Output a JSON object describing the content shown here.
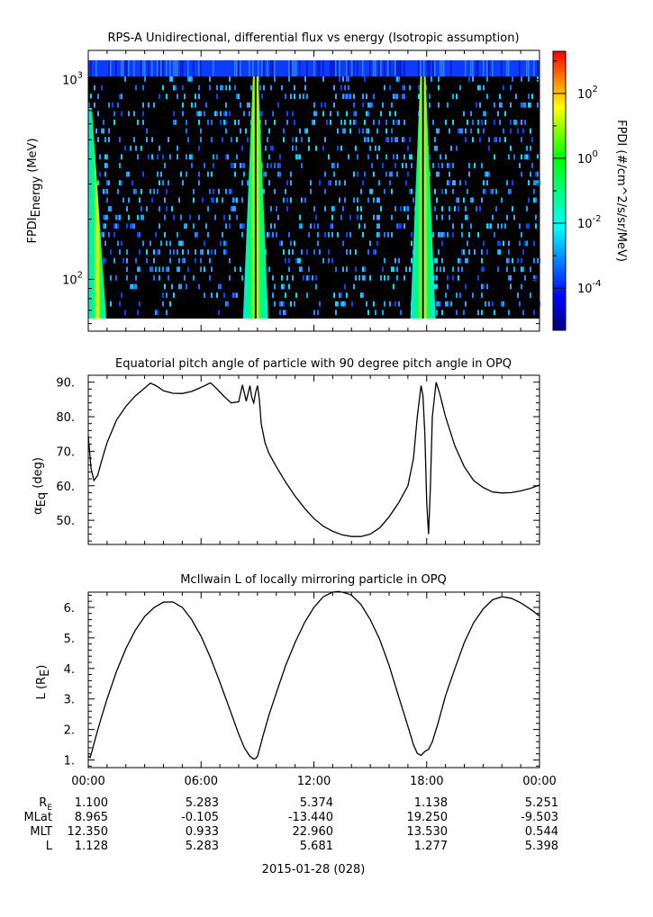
{
  "chart_data": [
    {
      "type": "heatmap",
      "title": "RPS-A Unidirectional, differential flux vs energy (Isotropic assumption)",
      "ylabel_main": "FPDI",
      "ylabel_sub": "Energy",
      "ylabel_unit": " (MeV)",
      "yscale": "log",
      "ylim": [
        55,
        1400
      ],
      "y_ticks": [
        {
          "base": "10",
          "exp": "3",
          "value": 1000
        },
        {
          "base": "10",
          "exp": "2",
          "value": 100
        }
      ],
      "colorbar": {
        "label": "FPDI (#/cm^2/s/sr/MeV)",
        "scale": "log",
        "range_log10": [
          -5.3,
          3.3
        ],
        "ticks": [
          {
            "base": "10",
            "exp": "2",
            "log": 2
          },
          {
            "base": "10",
            "exp": "0",
            "log": 0
          },
          {
            "base": "10",
            "exp": "-2",
            "log": -2
          },
          {
            "base": "10",
            "exp": "-4",
            "log": -4
          }
        ],
        "colors": [
          "#00007f",
          "#0000ff",
          "#00ffff",
          "#00ff00",
          "#ffff00",
          "#ff0000"
        ]
      },
      "features": [
        {
          "kind": "low-L flux band",
          "x_hours": 0.1,
          "peak": "yellow-green"
        },
        {
          "kind": "low-L flux band",
          "x_hours": 8.9,
          "peak": "yellow-green"
        },
        {
          "kind": "low-L flux band",
          "x_hours": 17.8,
          "peak": "yellow-green"
        }
      ]
    },
    {
      "type": "line",
      "title": "Equatorial pitch angle of particle with 90 degree pitch angle in OPQ",
      "ylabel_main": "α",
      "ylabel_sub": "Eq",
      "ylabel_unit": " (deg)",
      "ylim": [
        43,
        92
      ],
      "y_ticks": [
        "90.",
        "80.",
        "70.",
        "60.",
        "50."
      ],
      "x": [
        0.0,
        0.15,
        0.3,
        0.5,
        0.7,
        1.0,
        1.5,
        2.0,
        2.5,
        3.0,
        3.3,
        3.6,
        4.0,
        4.5,
        5.0,
        5.5,
        6.0,
        6.5,
        6.8,
        7.2,
        7.6,
        8.0,
        8.2,
        8.4,
        8.6,
        8.7,
        8.8,
        8.9,
        9.0,
        9.1,
        9.2,
        9.4,
        9.6,
        10.0,
        10.5,
        11.0,
        11.5,
        12.0,
        12.5,
        13.0,
        13.5,
        14.0,
        14.5,
        15.0,
        15.5,
        16.0,
        16.5,
        17.0,
        17.3,
        17.5,
        17.7,
        17.8,
        17.9,
        18.0,
        18.1,
        18.2,
        18.3,
        18.5,
        18.7,
        19.0,
        19.5,
        20.0,
        20.5,
        21.0,
        21.5,
        22.0,
        22.5,
        23.0,
        23.5,
        24.0
      ],
      "y": [
        74.5,
        65.0,
        61.5,
        63.0,
        67.0,
        72.5,
        79.0,
        83.0,
        86.0,
        88.3,
        89.7,
        89.0,
        87.5,
        86.8,
        86.7,
        87.3,
        88.5,
        89.8,
        88.3,
        86.0,
        84.0,
        84.3,
        89.2,
        84.5,
        89.0,
        85.5,
        84.0,
        87.0,
        89.0,
        85.0,
        78.0,
        72.5,
        69.5,
        65.5,
        61.0,
        57.0,
        53.5,
        50.5,
        48.3,
        46.8,
        45.8,
        45.3,
        45.3,
        46.0,
        47.8,
        51.0,
        55.0,
        60.0,
        68.0,
        80.0,
        89.0,
        86.0,
        75.0,
        55.0,
        46.0,
        60.0,
        80.0,
        90.0,
        86.5,
        80.0,
        71.5,
        65.5,
        61.5,
        59.5,
        58.2,
        57.9,
        58.0,
        58.5,
        59.2,
        60.2
      ]
    },
    {
      "type": "line",
      "title": "McIlwain L of locally mirroring particle in OPQ",
      "ylabel_main": "L (R",
      "ylabel_sub": "E",
      "ylabel_unit": ")",
      "ylim": [
        0.75,
        6.5
      ],
      "y_ticks": [
        "6.",
        "5.",
        "4.",
        "3.",
        "2.",
        "1."
      ],
      "x": [
        0.0,
        0.1,
        0.2,
        0.4,
        0.7,
        1.0,
        1.5,
        2.0,
        2.5,
        3.0,
        3.5,
        4.0,
        4.5,
        5.0,
        5.5,
        6.0,
        6.5,
        7.0,
        7.5,
        8.0,
        8.3,
        8.6,
        8.8,
        8.9,
        9.0,
        9.1,
        9.3,
        9.6,
        10.0,
        10.5,
        11.0,
        11.5,
        12.0,
        12.5,
        13.0,
        13.3,
        13.5,
        13.8,
        14.0,
        14.5,
        15.0,
        15.5,
        16.0,
        16.5,
        17.0,
        17.3,
        17.5,
        17.7,
        17.9,
        18.1,
        18.3,
        18.6,
        19.0,
        19.5,
        20.0,
        20.5,
        21.0,
        21.5,
        22.0,
        22.5,
        23.0,
        23.5,
        24.0
      ],
      "y": [
        1.13,
        1.08,
        1.3,
        1.75,
        2.4,
        3.0,
        3.9,
        4.65,
        5.25,
        5.7,
        6.0,
        6.17,
        6.18,
        6.0,
        5.6,
        5.05,
        4.35,
        3.55,
        2.7,
        1.85,
        1.4,
        1.12,
        1.03,
        1.05,
        1.12,
        1.35,
        1.8,
        2.45,
        3.2,
        4.1,
        4.85,
        5.5,
        6.0,
        6.35,
        6.5,
        6.52,
        6.5,
        6.45,
        6.4,
        6.1,
        5.6,
        4.95,
        4.1,
        3.1,
        2.1,
        1.5,
        1.22,
        1.15,
        1.28,
        1.35,
        1.6,
        2.2,
        3.1,
        4.0,
        4.85,
        5.5,
        5.95,
        6.25,
        6.35,
        6.3,
        6.15,
        5.95,
        5.72
      ]
    }
  ],
  "time_axis": {
    "xlim_hours": [
      0,
      24
    ],
    "ticks": [
      "00:00",
      "06:00",
      "12:00",
      "18:00",
      "00:00"
    ],
    "date_label": "2015-01-28 (028)"
  },
  "ephemeris": {
    "rows": [
      {
        "label": "R",
        "label_sub": "E",
        "values": [
          "1.100",
          "5.283",
          "5.374",
          "1.138",
          "5.251"
        ]
      },
      {
        "label": "MLat",
        "label_sub": "",
        "values": [
          "8.965",
          "-0.105",
          "-13.440",
          "19.250",
          "-9.503"
        ]
      },
      {
        "label": "MLT",
        "label_sub": "",
        "values": [
          "12.350",
          "0.933",
          "22.960",
          "13.530",
          "0.544"
        ]
      },
      {
        "label": "L",
        "label_sub": "",
        "values": [
          "1.128",
          "5.283",
          "5.681",
          "1.277",
          "5.398"
        ]
      }
    ]
  }
}
